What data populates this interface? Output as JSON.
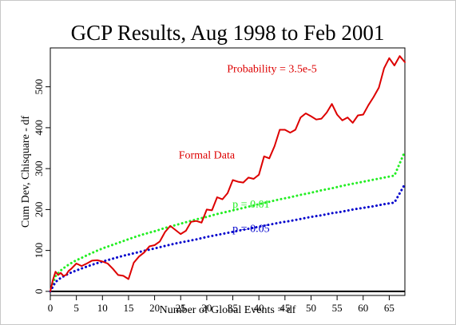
{
  "chart_data": {
    "type": "line",
    "title": "GCP Results, Aug 1998 to Feb 2001",
    "xlabel": "Number of Global Events = df",
    "ylabel": "Cum Dev, Chisquare - df",
    "xlim": [
      0,
      68
    ],
    "ylim": [
      -10,
      595
    ],
    "x_ticks": [
      0,
      5,
      10,
      15,
      20,
      25,
      30,
      35,
      40,
      45,
      50,
      55,
      60,
      65
    ],
    "y_ticks": [
      0,
      100,
      200,
      300,
      400,
      500
    ],
    "grid": false,
    "zero_line": true,
    "annotations": [
      {
        "text": "Probability = 3.5e-5",
        "x": 42.5,
        "y": 535,
        "color": "#dd0000"
      },
      {
        "text": "Formal Data",
        "x": 30,
        "y": 325,
        "color": "#dd0000"
      },
      {
        "text": "p = 0.01",
        "x": 38.5,
        "y": 205,
        "color": "#22ee22"
      },
      {
        "text": "p = 0.05",
        "x": 38.5,
        "y": 145,
        "color": "#0000cc"
      }
    ],
    "series": [
      {
        "name": "Formal Data",
        "color": "#dd0000",
        "style": "solid",
        "x": [
          0,
          0.5,
          1,
          1.5,
          2,
          2.5,
          3,
          3.5,
          4,
          5,
          6,
          7,
          8,
          9,
          10,
          11,
          12,
          13,
          14,
          15,
          16,
          17,
          18,
          19,
          20,
          21,
          22,
          23,
          24,
          25,
          26,
          27,
          28,
          29,
          30,
          31,
          32,
          33,
          34,
          35,
          36,
          37,
          38,
          39,
          40,
          41,
          42,
          43,
          44,
          45,
          46,
          47,
          48,
          49,
          50,
          51,
          52,
          53,
          54,
          55,
          56,
          57,
          58,
          59,
          60,
          61,
          62,
          63,
          64,
          65,
          66,
          67,
          68
        ],
        "y": [
          0,
          28,
          48,
          40,
          45,
          38,
          40,
          50,
          55,
          68,
          62,
          68,
          75,
          76,
          73,
          68,
          55,
          40,
          38,
          30,
          70,
          85,
          95,
          110,
          113,
          122,
          145,
          160,
          150,
          140,
          148,
          170,
          172,
          168,
          200,
          198,
          230,
          225,
          240,
          272,
          268,
          266,
          278,
          275,
          285,
          330,
          325,
          355,
          395,
          395,
          388,
          395,
          425,
          435,
          428,
          420,
          422,
          437,
          458,
          432,
          418,
          425,
          412,
          430,
          432,
          455,
          475,
          498,
          545,
          570,
          552,
          575,
          560
        ]
      },
      {
        "name": "p = 0.01",
        "color": "#22ee22",
        "style": "dotted",
        "x": [
          0,
          1,
          2,
          3,
          4,
          5,
          6,
          8,
          10,
          12,
          14,
          16,
          18,
          20,
          22,
          24,
          26,
          28,
          30,
          32,
          34,
          36,
          38,
          40,
          42,
          44,
          46,
          48,
          50,
          52,
          54,
          56,
          58,
          60,
          62,
          64,
          66,
          68
        ],
        "y": [
          0,
          37,
          51,
          61,
          69,
          76,
          82,
          94,
          105,
          114,
          123,
          132,
          140,
          147,
          155,
          162,
          169,
          176,
          182,
          189,
          195,
          201,
          207,
          213,
          219,
          225,
          230,
          236,
          241,
          247,
          252,
          258,
          263,
          268,
          273,
          278,
          283,
          342
        ]
      },
      {
        "name": "p = 0.05",
        "color": "#0000cc",
        "style": "dotted",
        "x": [
          0,
          1,
          2,
          3,
          4,
          5,
          6,
          8,
          10,
          12,
          14,
          16,
          18,
          20,
          22,
          24,
          26,
          28,
          30,
          32,
          34,
          36,
          38,
          40,
          42,
          44,
          46,
          48,
          50,
          52,
          54,
          56,
          58,
          60,
          62,
          64,
          66,
          68
        ],
        "y": [
          0,
          23,
          33,
          40,
          46,
          51,
          56,
          65,
          73,
          80,
          87,
          93,
          99,
          105,
          111,
          117,
          122,
          127,
          133,
          138,
          143,
          148,
          153,
          158,
          163,
          168,
          172,
          177,
          182,
          186,
          191,
          195,
          200,
          204,
          208,
          213,
          217,
          262
        ]
      }
    ]
  }
}
